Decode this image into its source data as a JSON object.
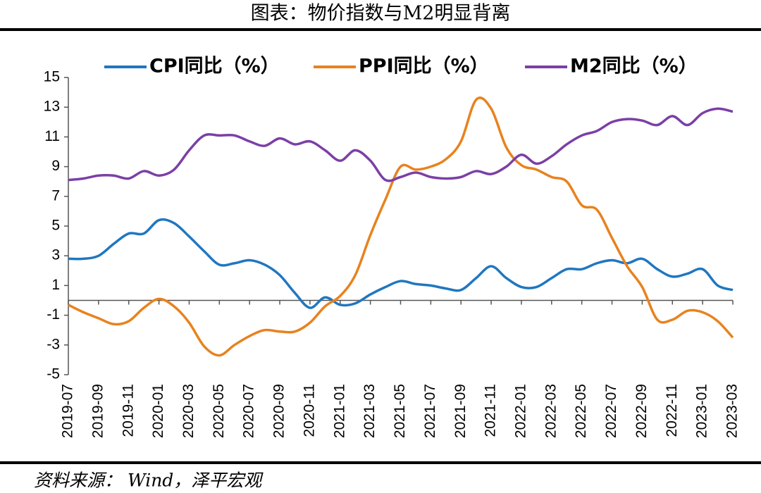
{
  "chart_data": {
    "type": "line",
    "title": "图表：物价指数与M2明显背离",
    "source": "资料来源： Wind，泽平宏观",
    "categories": [
      "2019-07",
      null,
      "2019-09",
      null,
      "2019-11",
      null,
      "2020-01",
      null,
      "2020-03",
      null,
      "2020-05",
      null,
      "2020-07",
      null,
      "2020-09",
      null,
      "2020-11",
      null,
      "2021-01",
      null,
      "2021-03",
      null,
      "2021-05",
      null,
      "2021-07",
      null,
      "2021-09",
      null,
      "2021-11",
      null,
      "2022-01",
      null,
      "2022-03",
      null,
      "2022-05",
      null,
      "2022-07",
      null,
      "2022-09",
      null,
      "2022-11",
      null,
      "2023-01",
      null,
      "2023-03"
    ],
    "series": [
      {
        "name": "CPI同比（%）",
        "color": "#1f77c0",
        "values": [
          2.8,
          2.8,
          3.0,
          3.8,
          4.5,
          4.5,
          5.4,
          5.2,
          4.3,
          3.3,
          2.4,
          2.5,
          2.7,
          2.4,
          1.7,
          0.5,
          -0.5,
          0.2,
          -0.3,
          -0.2,
          0.4,
          0.9,
          1.3,
          1.1,
          1.0,
          0.8,
          0.7,
          1.5,
          2.3,
          1.5,
          0.9,
          0.9,
          1.5,
          2.1,
          2.1,
          2.5,
          2.7,
          2.5,
          2.8,
          2.1,
          1.6,
          1.8,
          2.1,
          1.0,
          0.7
        ]
      },
      {
        "name": "PPI同比（%）",
        "color": "#e8821e",
        "values": [
          -0.3,
          -0.8,
          -1.2,
          -1.6,
          -1.4,
          -0.5,
          0.1,
          -0.4,
          -1.5,
          -3.1,
          -3.7,
          -3.0,
          -2.4,
          -2.0,
          -2.1,
          -2.1,
          -1.5,
          -0.4,
          0.3,
          1.7,
          4.4,
          6.8,
          9.0,
          8.8,
          9.0,
          9.5,
          10.7,
          13.5,
          12.9,
          10.3,
          9.1,
          8.8,
          8.3,
          8.0,
          6.4,
          6.1,
          4.2,
          2.3,
          0.9,
          -1.3,
          -1.3,
          -0.7,
          -0.8,
          -1.4,
          -2.5
        ]
      },
      {
        "name": "M2同比（%）",
        "color": "#7b3fa6",
        "values": [
          8.1,
          8.2,
          8.4,
          8.4,
          8.2,
          8.7,
          8.4,
          8.8,
          10.1,
          11.1,
          11.1,
          11.1,
          10.7,
          10.4,
          10.9,
          10.5,
          10.7,
          10.1,
          9.4,
          10.1,
          9.4,
          8.1,
          8.3,
          8.6,
          8.3,
          8.2,
          8.3,
          8.7,
          8.5,
          9.0,
          9.8,
          9.2,
          9.7,
          10.5,
          11.1,
          11.4,
          12.0,
          12.2,
          12.1,
          11.8,
          12.4,
          11.8,
          12.6,
          12.9,
          12.7
        ]
      }
    ],
    "ylim": [
      -5,
      15
    ],
    "yticks": [
      -5,
      -3,
      -1,
      1,
      3,
      5,
      7,
      9,
      11,
      13,
      15
    ]
  }
}
